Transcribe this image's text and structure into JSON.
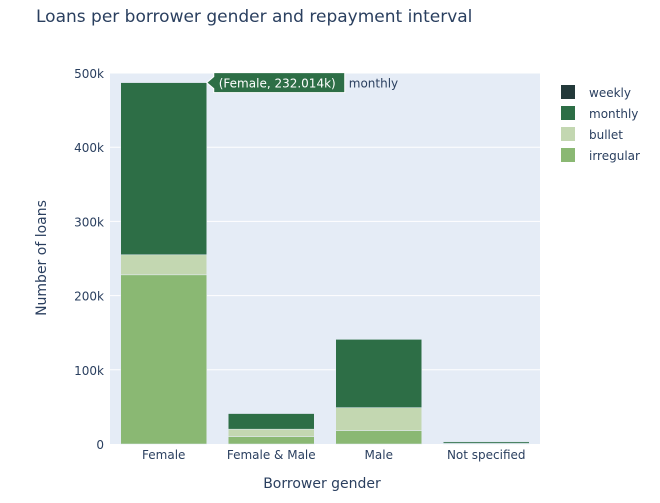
{
  "chart_data": {
    "type": "bar",
    "stacked": true,
    "title": "Loans per borrower gender and repayment interval",
    "xlabel": "Borrower gender",
    "ylabel": "Number of loans",
    "categories": [
      "Female",
      "Female & Male",
      "Male",
      "Not specified"
    ],
    "ylim": [
      0,
      500000
    ],
    "yticks": [
      0,
      100000,
      200000,
      300000,
      400000,
      500000
    ],
    "ytick_labels": [
      "0",
      "100k",
      "200k",
      "300k",
      "400k",
      "500k"
    ],
    "grid": true,
    "legend_position": "top-right",
    "series": [
      {
        "name": "irregular",
        "color": "#8ab873",
        "values": [
          228000,
          10000,
          18000,
          500
        ]
      },
      {
        "name": "bullet",
        "color": "#c3d7b1",
        "values": [
          27000,
          10000,
          31000,
          300
        ]
      },
      {
        "name": "monthly",
        "color": "#2d6e46",
        "values": [
          232014,
          21000,
          92000,
          2000
        ]
      },
      {
        "name": "weekly",
        "color": "#23393a",
        "values": [
          0,
          0,
          0,
          0
        ]
      }
    ],
    "legend_order": [
      "weekly",
      "monthly",
      "bullet",
      "irregular"
    ],
    "tooltip": {
      "label": "(Female, 232.014k)",
      "series": "monthly",
      "category_index": 0
    },
    "colors": {
      "plot_background": "#e5ecf6",
      "grid": "#ffffff",
      "text": "#2a3f5f",
      "tooltip_bg": "#2d6e46"
    }
  }
}
